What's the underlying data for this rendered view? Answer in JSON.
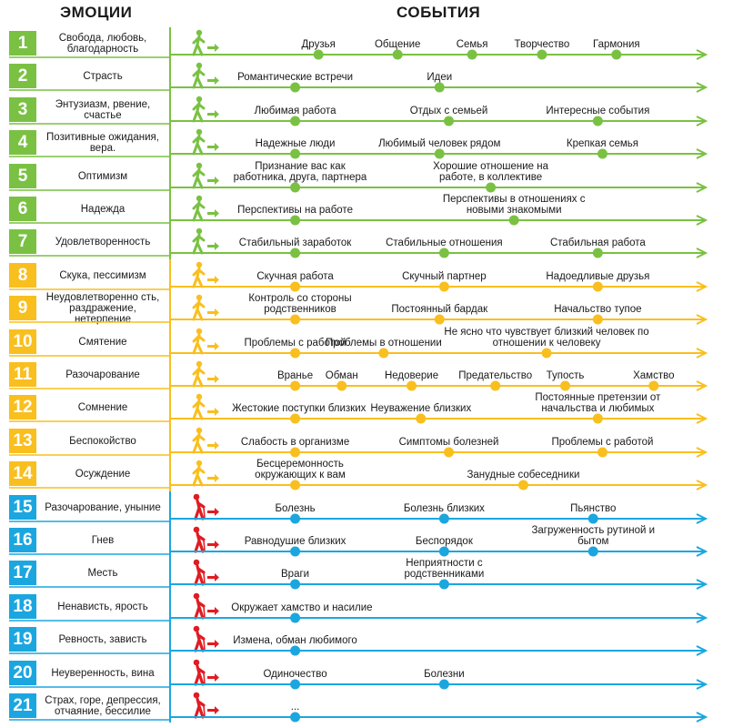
{
  "headers": {
    "emotions": "ЭМОЦИИ",
    "events": "СОБЫТИЯ"
  },
  "colors": {
    "green": "#7ac143",
    "yellow": "#f9bf1f",
    "blue": "#1ba6e0",
    "red": "#e11b22"
  },
  "rows": [
    {
      "num": "1",
      "emotion": "Свобода, любовь, благодарность",
      "group": "green",
      "icon": "walking-person-icon",
      "events": [
        {
          "label": "Друзья",
          "pos": 0.18
        },
        {
          "label": "Общение",
          "pos": 0.35
        },
        {
          "label": "Семья",
          "pos": 0.51
        },
        {
          "label": "Творчество",
          "pos": 0.66
        },
        {
          "label": "Гармония",
          "pos": 0.82
        }
      ]
    },
    {
      "num": "2",
      "emotion": "Страсть",
      "group": "green",
      "icon": "walking-person-icon",
      "events": [
        {
          "label": "Романтические встречи",
          "pos": 0.13
        },
        {
          "label": "Идеи",
          "pos": 0.44
        }
      ]
    },
    {
      "num": "3",
      "emotion": "Энтузиазм, рвение, счастье",
      "group": "green",
      "icon": "walking-person-icon",
      "events": [
        {
          "label": "Любимая работа",
          "pos": 0.13
        },
        {
          "label": "Отдых с семьей",
          "pos": 0.46
        },
        {
          "label": "Интересные события",
          "pos": 0.78
        }
      ]
    },
    {
      "num": "4",
      "emotion": "Позитивные ожидания, вера.",
      "group": "green",
      "icon": "walking-person-icon",
      "events": [
        {
          "label": "Надежные люди",
          "pos": 0.13
        },
        {
          "label": "Любимый человек рядом",
          "pos": 0.44
        },
        {
          "label": "Крепкая семья",
          "pos": 0.79
        }
      ]
    },
    {
      "num": "5",
      "emotion": "Оптимизм",
      "group": "green",
      "icon": "walking-person-icon",
      "events": [
        {
          "label": "Признание вас как работника, друга, партнера",
          "pos": 0.13
        },
        {
          "label": "Хорошие отношение на работе, в коллективе",
          "pos": 0.55
        }
      ]
    },
    {
      "num": "6",
      "emotion": "Надежда",
      "group": "green",
      "icon": "walking-person-icon",
      "events": [
        {
          "label": "Перспективы на работе",
          "pos": 0.13
        },
        {
          "label": "Перспективы в отношениях с новыми знакомыми",
          "pos": 0.6
        }
      ]
    },
    {
      "num": "7",
      "emotion": "Удовлетворенность",
      "group": "green",
      "icon": "walking-person-icon",
      "events": [
        {
          "label": "Стабильный заработок",
          "pos": 0.13
        },
        {
          "label": "Стабильные отношения",
          "pos": 0.45
        },
        {
          "label": "Стабильная работа",
          "pos": 0.78
        }
      ]
    },
    {
      "num": "8",
      "emotion": "Скука, пессимизм",
      "group": "yellow",
      "icon": "walking-person-icon",
      "events": [
        {
          "label": "Скучная работа",
          "pos": 0.13
        },
        {
          "label": "Скучный партнер",
          "pos": 0.45
        },
        {
          "label": "Надоедливые друзья",
          "pos": 0.78
        }
      ]
    },
    {
      "num": "9",
      "emotion": "Неудовлетворенно сть, раздражение, нетерпение",
      "group": "yellow",
      "icon": "walking-person-icon",
      "events": [
        {
          "label": "Контроль со стороны родственников",
          "pos": 0.13
        },
        {
          "label": "Постоянный бардак",
          "pos": 0.44
        },
        {
          "label": "Начальство тупое",
          "pos": 0.78
        }
      ]
    },
    {
      "num": "10",
      "emotion": "Смятение",
      "group": "yellow",
      "icon": "walking-person-icon",
      "events": [
        {
          "label": "Проблемы с работой",
          "pos": 0.13
        },
        {
          "label": "Проблемы в отношении",
          "pos": 0.32
        },
        {
          "label": "Не ясно что чувствует близкий человек по отношении к человеку",
          "pos": 0.67
        }
      ]
    },
    {
      "num": "11",
      "emotion": "Разочарование",
      "group": "yellow",
      "icon": "walking-person-icon",
      "events": [
        {
          "label": "Вранье",
          "pos": 0.13
        },
        {
          "label": "Обман",
          "pos": 0.23
        },
        {
          "label": "Недоверие",
          "pos": 0.38
        },
        {
          "label": "Предательство",
          "pos": 0.56
        },
        {
          "label": "Тупость",
          "pos": 0.71
        },
        {
          "label": "Хамство",
          "pos": 0.9
        }
      ]
    },
    {
      "num": "12",
      "emotion": "Сомнение",
      "group": "yellow",
      "icon": "walking-person-icon",
      "events": [
        {
          "label": "Жестокие поступки близких",
          "pos": 0.13
        },
        {
          "label": "Неуважение близких",
          "pos": 0.4
        },
        {
          "label": "Постоянные претензии от начальства и любимых",
          "pos": 0.78
        }
      ]
    },
    {
      "num": "13",
      "emotion": "Беспокойство",
      "group": "yellow",
      "icon": "walking-person-icon",
      "events": [
        {
          "label": "Слабость в организме",
          "pos": 0.13
        },
        {
          "label": "Симптомы болезней",
          "pos": 0.46
        },
        {
          "label": "Проблемы с работой",
          "pos": 0.79
        }
      ]
    },
    {
      "num": "14",
      "emotion": "Осуждение",
      "group": "yellow",
      "icon": "walking-person-icon",
      "events": [
        {
          "label": "Бесцеремонность окружающих к вам",
          "pos": 0.13
        },
        {
          "label": "Занудные собеседники",
          "pos": 0.62
        }
      ]
    },
    {
      "num": "15",
      "emotion": "Разочарование, уныние",
      "group": "blue",
      "icon": "person-with-cane-icon",
      "events": [
        {
          "label": "Болезнь",
          "pos": 0.13
        },
        {
          "label": "Болезнь близких",
          "pos": 0.45
        },
        {
          "label": "Пьянство",
          "pos": 0.77
        }
      ]
    },
    {
      "num": "16",
      "emotion": "Гнев",
      "group": "blue",
      "icon": "person-with-cane-icon",
      "events": [
        {
          "label": "Равнодушие близких",
          "pos": 0.13
        },
        {
          "label": "Беспорядок",
          "pos": 0.45
        },
        {
          "label": "Загруженность рутиной и бытом",
          "pos": 0.77
        }
      ]
    },
    {
      "num": "17",
      "emotion": "Месть",
      "group": "blue",
      "icon": "person-with-cane-icon",
      "events": [
        {
          "label": "Враги",
          "pos": 0.13
        },
        {
          "label": "Неприятности с родственниками",
          "pos": 0.45
        }
      ]
    },
    {
      "num": "18",
      "emotion": "Ненависть, ярость",
      "group": "blue",
      "icon": "person-with-cane-icon",
      "events": [
        {
          "label": "Окружает хамство и насилие",
          "pos": 0.13
        }
      ]
    },
    {
      "num": "19",
      "emotion": "Ревность, зависть",
      "group": "blue",
      "icon": "person-with-cane-icon",
      "events": [
        {
          "label": "Измена, обман любимого",
          "pos": 0.13
        }
      ]
    },
    {
      "num": "20",
      "emotion": "Неуверенность, вина",
      "group": "blue",
      "icon": "person-with-cane-icon",
      "events": [
        {
          "label": "Одиночество",
          "pos": 0.13
        },
        {
          "label": "Болезни",
          "pos": 0.45
        }
      ]
    },
    {
      "num": "21",
      "emotion": "Страх, горе, депрессия, отчаяние, бессилие",
      "group": "blue",
      "icon": "person-with-cane-icon",
      "events": [
        {
          "label": "...",
          "pos": 0.13
        }
      ]
    }
  ]
}
